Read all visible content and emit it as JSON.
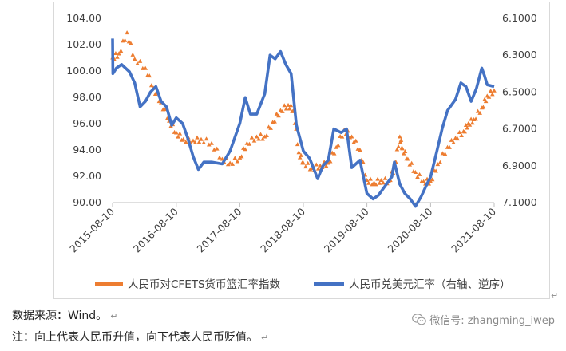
{
  "chart_data": {
    "type": "line",
    "x_ticks": [
      "2015-08-10",
      "2016-08-10",
      "2017-08-10",
      "2018-08-10",
      "2019-08-10",
      "2020-08-10",
      "2021-08-10"
    ],
    "y_left": {
      "min": 90,
      "max": 104,
      "ticks": [
        "90.00",
        "92.00",
        "94.00",
        "96.00",
        "98.00",
        "100.00",
        "102.00",
        "104.00"
      ]
    },
    "y_right": {
      "min": 6.1,
      "max": 7.1,
      "inverted": true,
      "ticks": [
        "6.1000",
        "6.3000",
        "6.5000",
        "6.7000",
        "6.9000",
        "7.1000"
      ]
    },
    "grid": false,
    "legend_position": "bottom",
    "series": [
      {
        "name": "人民币对CFETS货币篮汇率指数",
        "axis": "left",
        "marker": "triangle",
        "color": "#ED7D31",
        "points": [
          [
            "2015-08-10",
            101.0
          ],
          [
            "2015-09-15",
            101.3
          ],
          [
            "2015-11-01",
            102.9
          ],
          [
            "2015-12-15",
            100.9
          ],
          [
            "2016-02-15",
            100.2
          ],
          [
            "2016-04-01",
            98.7
          ],
          [
            "2016-05-15",
            97.6
          ],
          [
            "2016-06-30",
            96.2
          ],
          [
            "2016-08-10",
            95.3
          ],
          [
            "2016-09-20",
            94.8
          ],
          [
            "2016-11-15",
            94.7
          ],
          [
            "2016-12-31",
            94.8
          ],
          [
            "2017-03-01",
            94.5
          ],
          [
            "2017-05-01",
            93.3
          ],
          [
            "2017-06-15",
            93.0
          ],
          [
            "2017-08-10",
            93.4
          ],
          [
            "2017-09-20",
            94.5
          ],
          [
            "2017-11-15",
            95.0
          ],
          [
            "2017-12-31",
            95.0
          ],
          [
            "2018-02-15",
            96.1
          ],
          [
            "2018-04-01",
            97.0
          ],
          [
            "2018-05-15",
            97.4
          ],
          [
            "2018-06-15",
            97.0
          ],
          [
            "2018-07-15",
            93.8
          ],
          [
            "2018-08-10",
            93.0
          ],
          [
            "2018-10-01",
            92.6
          ],
          [
            "2018-11-15",
            92.8
          ],
          [
            "2018-12-31",
            93.0
          ],
          [
            "2019-02-15",
            94.2
          ],
          [
            "2019-04-01",
            95.5
          ],
          [
            "2019-05-15",
            95.0
          ],
          [
            "2019-07-01",
            94.0
          ],
          [
            "2019-08-10",
            91.7
          ],
          [
            "2019-09-20",
            91.5
          ],
          [
            "2019-11-01",
            91.7
          ],
          [
            "2019-12-15",
            91.6
          ],
          [
            "2020-01-15",
            92.7
          ],
          [
            "2020-02-15",
            95.0
          ],
          [
            "2020-03-01",
            94.1
          ],
          [
            "2020-04-01",
            93.3
          ],
          [
            "2020-05-15",
            92.3
          ],
          [
            "2020-07-01",
            91.6
          ],
          [
            "2020-08-10",
            91.6
          ],
          [
            "2020-09-20",
            92.9
          ],
          [
            "2020-11-15",
            94.2
          ],
          [
            "2020-12-31",
            94.9
          ],
          [
            "2021-02-15",
            95.4
          ],
          [
            "2021-03-15",
            96.0
          ],
          [
            "2021-04-15",
            96.3
          ],
          [
            "2021-06-01",
            97.2
          ],
          [
            "2021-07-01",
            98.1
          ],
          [
            "2021-08-10",
            98.5
          ]
        ]
      },
      {
        "name": "人民币兑美元汇率（右轴、逆序）",
        "axis": "right",
        "marker": "line",
        "color": "#4472C4",
        "points": [
          [
            "2015-08-10",
            6.21
          ],
          [
            "2015-08-12",
            6.4
          ],
          [
            "2015-09-01",
            6.37
          ],
          [
            "2015-10-01",
            6.35
          ],
          [
            "2015-11-15",
            6.39
          ],
          [
            "2015-12-15",
            6.45
          ],
          [
            "2016-01-15",
            6.58
          ],
          [
            "2016-02-15",
            6.55
          ],
          [
            "2016-03-15",
            6.5
          ],
          [
            "2016-04-15",
            6.47
          ],
          [
            "2016-05-15",
            6.55
          ],
          [
            "2016-06-15",
            6.58
          ],
          [
            "2016-07-15",
            6.68
          ],
          [
            "2016-08-10",
            6.64
          ],
          [
            "2016-09-15",
            6.67
          ],
          [
            "2016-10-15",
            6.75
          ],
          [
            "2016-11-15",
            6.85
          ],
          [
            "2016-12-15",
            6.92
          ],
          [
            "2017-01-15",
            6.88
          ],
          [
            "2017-03-01",
            6.88
          ],
          [
            "2017-05-01",
            6.89
          ],
          [
            "2017-06-15",
            6.82
          ],
          [
            "2017-08-10",
            6.67
          ],
          [
            "2017-09-10",
            6.53
          ],
          [
            "2017-10-10",
            6.62
          ],
          [
            "2017-11-15",
            6.62
          ],
          [
            "2017-12-31",
            6.51
          ],
          [
            "2018-01-31",
            6.3
          ],
          [
            "2018-03-01",
            6.32
          ],
          [
            "2018-04-01",
            6.28
          ],
          [
            "2018-05-01",
            6.35
          ],
          [
            "2018-06-01",
            6.4
          ],
          [
            "2018-07-01",
            6.68
          ],
          [
            "2018-08-10",
            6.82
          ],
          [
            "2018-09-15",
            6.86
          ],
          [
            "2018-10-31",
            6.97
          ],
          [
            "2018-12-01",
            6.9
          ],
          [
            "2018-12-31",
            6.87
          ],
          [
            "2019-02-01",
            6.7
          ],
          [
            "2019-03-15",
            6.72
          ],
          [
            "2019-04-15",
            6.7
          ],
          [
            "2019-05-15",
            6.91
          ],
          [
            "2019-07-01",
            6.87
          ],
          [
            "2019-08-10",
            7.05
          ],
          [
            "2019-09-15",
            7.08
          ],
          [
            "2019-10-15",
            7.06
          ],
          [
            "2019-11-15",
            7.02
          ],
          [
            "2019-12-31",
            6.96
          ],
          [
            "2020-01-15",
            6.88
          ],
          [
            "2020-02-15",
            7.0
          ],
          [
            "2020-03-15",
            7.05
          ],
          [
            "2020-04-15",
            7.08
          ],
          [
            "2020-05-15",
            7.12
          ],
          [
            "2020-06-15",
            7.07
          ],
          [
            "2020-07-15",
            7.01
          ],
          [
            "2020-08-10",
            6.96
          ],
          [
            "2020-09-15",
            6.82
          ],
          [
            "2020-10-15",
            6.7
          ],
          [
            "2020-11-15",
            6.6
          ],
          [
            "2020-12-31",
            6.54
          ],
          [
            "2021-01-31",
            6.45
          ],
          [
            "2021-03-01",
            6.47
          ],
          [
            "2021-03-31",
            6.55
          ],
          [
            "2021-04-30",
            6.48
          ],
          [
            "2021-05-31",
            6.37
          ],
          [
            "2021-06-15",
            6.41
          ],
          [
            "2021-07-01",
            6.46
          ],
          [
            "2021-08-10",
            6.47
          ]
        ]
      }
    ]
  },
  "notes": {
    "source": "数据来源：Wind。",
    "explanation": "注：向上代表人民币升值，向下代表人民币贬值。",
    "return_mark": "↵"
  },
  "watermark": {
    "text": "微信号: zhangming_iwep"
  }
}
